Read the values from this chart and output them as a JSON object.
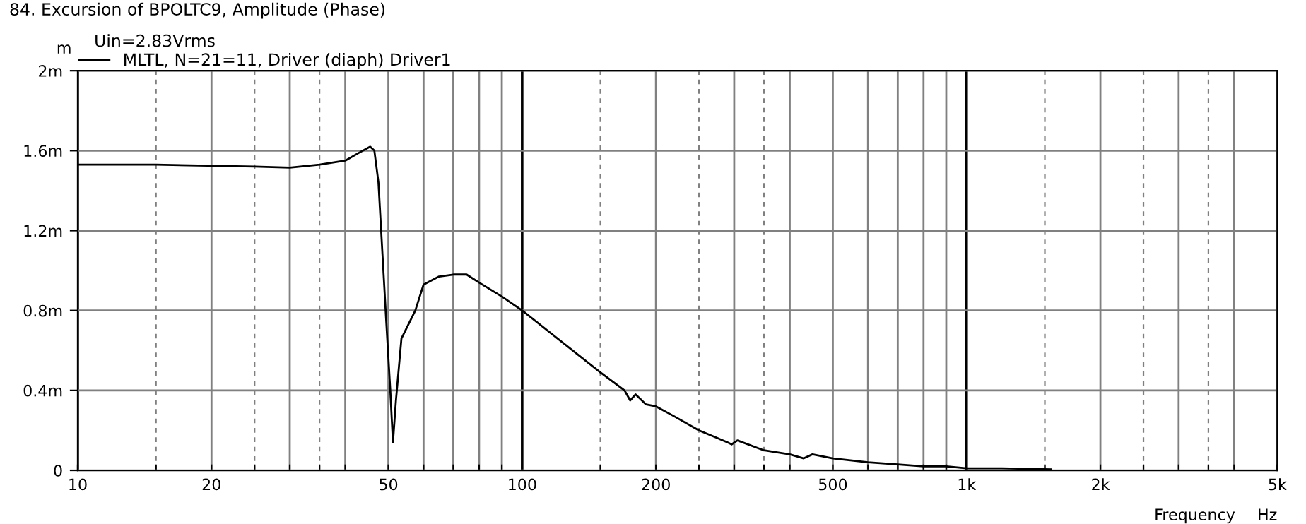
{
  "chart_data": {
    "type": "line",
    "title": "84. Excursion of BPOLTC9, Amplitude (Phase)",
    "subtitle": "Uin=2.83Vrms",
    "xlabel": "Frequency",
    "ylabel": "m",
    "annotations": [
      "Hz"
    ],
    "log": "x",
    "grid": true,
    "legend": "top left",
    "marker": "none",
    "line_style": "solid",
    "xlim": [
      10,
      5000
    ],
    "ylim": [
      0,
      2
    ],
    "xticks": [
      10,
      {
        "value": 15,
        "label": null
      },
      20,
      {
        "value": 25,
        "label": null
      },
      {
        "value": 30,
        "label": null
      },
      {
        "value": 35,
        "label": null
      },
      {
        "value": 40,
        "label": null
      },
      50,
      {
        "value": 60,
        "label": null
      },
      {
        "value": 70,
        "label": null
      },
      {
        "value": 80,
        "label": null
      },
      {
        "value": 90,
        "label": null
      },
      100,
      {
        "value": 150,
        "label": null
      },
      200,
      {
        "value": 250,
        "label": null
      },
      {
        "value": 300,
        "label": null
      },
      {
        "value": 350,
        "label": null
      },
      {
        "value": 400,
        "label": null
      },
      500,
      {
        "value": 600,
        "label": null
      },
      {
        "value": 700,
        "label": null
      },
      {
        "value": 800,
        "label": null
      },
      {
        "value": 900,
        "label": null
      },
      {
        "value": 1000,
        "label": "1k"
      },
      {
        "value": 1500,
        "label": null
      },
      {
        "value": 2000,
        "label": "2k"
      },
      {
        "value": 2500,
        "label": null
      },
      {
        "value": 3000,
        "label": null
      },
      {
        "value": 3500,
        "label": null
      },
      {
        "value": 4000,
        "label": null
      },
      {
        "value": 5000,
        "label": "5k"
      }
    ],
    "yticks": [
      0,
      {
        "value": 0.4,
        "label": "0.4m"
      },
      {
        "value": 0.8,
        "label": "0.8m"
      },
      {
        "value": 1.2,
        "label": "1.2m"
      },
      {
        "value": 1.6,
        "label": "1.6m"
      },
      {
        "value": 2,
        "label": "2m"
      }
    ],
    "x": [
      10,
      15,
      25,
      30,
      35,
      40,
      43,
      45.5,
      46.5,
      47.5,
      48.5,
      49.5,
      50.5,
      51.2,
      52,
      53.5,
      57.5,
      60,
      65,
      70,
      75,
      80,
      90,
      100,
      150,
      170,
      175,
      180,
      190,
      200,
      220,
      250,
      290,
      296,
      305,
      350,
      400,
      430,
      450,
      500,
      600,
      700,
      800,
      900,
      1000,
      1200,
      1550
    ],
    "series": [
      {
        "name": "MLTL, N=21=11, Driver (diaph) Driver1",
        "color": "#000000",
        "values": [
          1.53,
          1.53,
          1.52,
          1.515,
          1.53,
          1.55,
          1.59,
          1.62,
          1.6,
          1.44,
          1.08,
          0.73,
          0.4,
          0.14,
          0.35,
          0.66,
          0.8,
          0.93,
          0.97,
          0.98,
          0.98,
          0.94,
          0.87,
          0.8,
          0.49,
          0.4,
          0.35,
          0.38,
          0.33,
          0.32,
          0.27,
          0.2,
          0.14,
          0.13,
          0.15,
          0.1,
          0.08,
          0.06,
          0.08,
          0.06,
          0.04,
          0.03,
          0.02,
          0.02,
          0.01,
          0.01,
          0.005
        ]
      }
    ]
  }
}
